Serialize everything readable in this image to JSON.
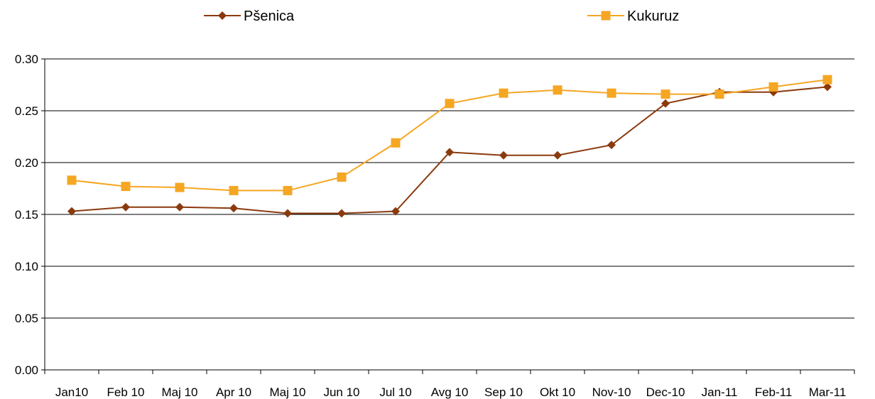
{
  "chart_data": {
    "type": "line",
    "categories": [
      "Jan10",
      "Feb 10",
      "Maj 10",
      "Apr 10",
      "Maj  10",
      "Jun  10",
      "Jul 10",
      "Avg  10",
      "Sep  10",
      "Okt 10",
      "Nov-10",
      "Dec-10",
      "Jan-11",
      "Feb-11",
      "Mar-11"
    ],
    "series": [
      {
        "name": "Pšenica",
        "color": "#8B3A0E",
        "marker": "diamond",
        "values": [
          0.153,
          0.157,
          0.157,
          0.156,
          0.151,
          0.151,
          0.153,
          0.21,
          0.207,
          0.207,
          0.217,
          0.257,
          0.268,
          0.268,
          0.273
        ]
      },
      {
        "name": "Kukuruz",
        "color": "#F5A623",
        "marker": "square",
        "values": [
          0.183,
          0.177,
          0.176,
          0.173,
          0.173,
          0.186,
          0.219,
          0.257,
          0.267,
          0.27,
          0.267,
          0.266,
          0.266,
          0.273,
          0.28
        ]
      }
    ],
    "ylim": [
      0,
      0.3
    ],
    "yticks": [
      "0.00",
      "0.05",
      "0.10",
      "0.15",
      "0.20",
      "0.25",
      "0.30"
    ],
    "grid": "horizontal",
    "legend_position": "top"
  }
}
